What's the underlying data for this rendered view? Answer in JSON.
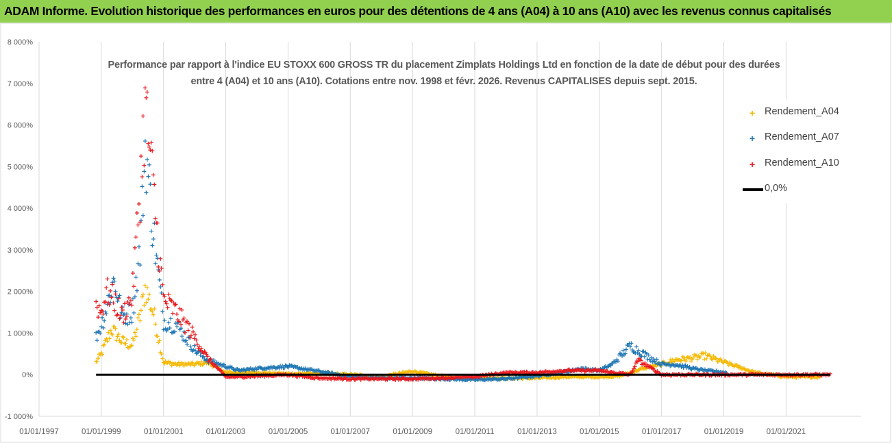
{
  "banner": {
    "title": "ADAM Informe. Evolution historique des performances en euros pour des détentions de 4 ans (A04) à 10 ans (A10) avec les revenus connus capitalisés"
  },
  "chart_data": {
    "type": "scatter",
    "title_line1": "Performance par rapport à l'indice EU STOXX 600 GROSS TR  du placement Zimplats Holdings Ltd en fonction de la date de début pour des durées",
    "title_line2": "entre 4 (A04) et 10 ans (A10).  Cotations entre nov. 1998 et févr. 2026. Revenus CAPITALISES depuis sept. 2015.",
    "xlabel": "",
    "ylabel": "",
    "x_ticks": [
      "01/01/1997",
      "01/01/1999",
      "01/01/2001",
      "01/01/2003",
      "01/01/2005",
      "01/01/2007",
      "01/01/2009",
      "01/01/2011",
      "01/01/2013",
      "01/01/2015",
      "01/01/2017",
      "01/01/2019",
      "01/01/2021"
    ],
    "y_ticks": [
      "-1 000%",
      "0%",
      "1 000%",
      "2 000%",
      "3 000%",
      "4 000%",
      "5 000%",
      "6 000%",
      "7 000%",
      "8 000%"
    ],
    "xlim": [
      "1997-01-01",
      "2023-06-01"
    ],
    "ylim": [
      -1000,
      8000
    ],
    "grid": "vertical",
    "legend_position": "top-right",
    "colors": {
      "A04": "#f5b800",
      "A07": "#1f77b4",
      "A10": "#e8191f",
      "zero": "#000000"
    },
    "series": [
      {
        "name": "Rendement_A04",
        "marker": "+",
        "x_range": [
          "1998-11-01",
          "2022-02-01"
        ],
        "x": [
          "1998-11",
          "1999-01",
          "1999-05",
          "1999-09",
          "2000-01",
          "2000-04",
          "2000-06",
          "2000-09",
          "2001-01",
          "2001-06",
          "2002-01",
          "2002-06",
          "2003-01",
          "2004-01",
          "2005-01",
          "2006-01",
          "2007-01",
          "2008-01",
          "2009-01",
          "2010-01",
          "2011-01",
          "2012-01",
          "2013-01",
          "2014-01",
          "2015-01",
          "2015-09",
          "2016-01",
          "2016-06",
          "2017-01",
          "2017-06",
          "2018-01",
          "2018-06",
          "2019-01",
          "2019-06",
          "2020-01",
          "2021-01",
          "2022-02"
        ],
        "values": [
          300,
          500,
          1100,
          800,
          700,
          1400,
          2100,
          1500,
          300,
          250,
          250,
          300,
          50,
          50,
          20,
          30,
          0,
          -50,
          80,
          -50,
          -80,
          -80,
          -80,
          -50,
          -50,
          -30,
          50,
          150,
          250,
          350,
          400,
          450,
          300,
          200,
          50,
          -50,
          -50
        ]
      },
      {
        "name": "Rendement_A07",
        "marker": "+",
        "x_range": [
          "1998-11-01",
          "2019-02-01"
        ],
        "x": [
          "1998-11",
          "1999-01",
          "1999-03",
          "1999-06",
          "1999-09",
          "2000-01",
          "2000-04",
          "2000-06",
          "2000-09",
          "2001-01",
          "2001-06",
          "2002-01",
          "2002-06",
          "2003-01",
          "2003-06",
          "2004-01",
          "2005-01",
          "2006-01",
          "2007-01",
          "2008-01",
          "2009-01",
          "2010-01",
          "2011-01",
          "2012-01",
          "2013-01",
          "2014-01",
          "2014-06",
          "2015-01",
          "2015-06",
          "2016-01",
          "2016-06",
          "2017-01",
          "2017-06",
          "2018-01",
          "2018-06",
          "2019-02"
        ],
        "values": [
          900,
          1200,
          1600,
          2300,
          1400,
          1500,
          3000,
          5500,
          3500,
          1300,
          1200,
          600,
          350,
          200,
          100,
          150,
          200,
          80,
          -50,
          -80,
          -80,
          -100,
          -120,
          -100,
          -30,
          80,
          150,
          100,
          250,
          700,
          500,
          250,
          250,
          150,
          100,
          50
        ]
      },
      {
        "name": "Rendement_A10",
        "marker": "+",
        "x_range": [
          "1998-11-01",
          "2022-06-01"
        ],
        "x": [
          "1998-11",
          "1999-01",
          "1999-03",
          "1999-06",
          "1999-09",
          "2000-01",
          "2000-04",
          "2000-06",
          "2000-09",
          "2001-01",
          "2001-06",
          "2002-01",
          "2002-06",
          "2003-01",
          "2003-06",
          "2004-01",
          "2005-01",
          "2006-01",
          "2007-01",
          "2008-01",
          "2009-01",
          "2010-01",
          "2011-01",
          "2012-01",
          "2013-01",
          "2014-01",
          "2015-01",
          "2015-06",
          "2016-01",
          "2016-04",
          "2017-01",
          "2018-01",
          "2019-01",
          "2020-01",
          "2021-01",
          "2022-06"
        ],
        "values": [
          1700,
          1500,
          2000,
          1800,
          1400,
          1900,
          4500,
          6500,
          4500,
          1800,
          1500,
          900,
          400,
          -50,
          -50,
          -30,
          0,
          -80,
          -100,
          -100,
          -100,
          -80,
          -50,
          50,
          50,
          100,
          100,
          50,
          0,
          350,
          0,
          0,
          0,
          0,
          0,
          0
        ]
      },
      {
        "name": "0,0%",
        "type": "line",
        "x": [
          "1998-11",
          "2022-06"
        ],
        "values": [
          0,
          0
        ]
      }
    ]
  }
}
